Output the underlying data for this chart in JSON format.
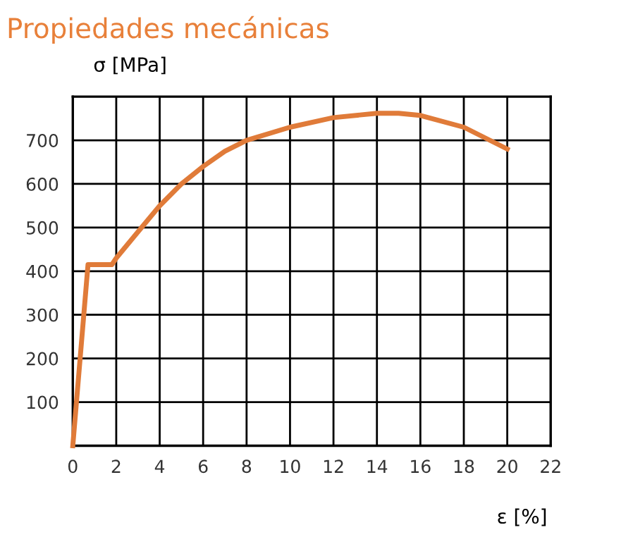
{
  "chart_data": {
    "type": "line",
    "title": "Propiedades mecánicas",
    "xlabel": "ε [%]",
    "ylabel": "σ [MPa]",
    "x": [
      0,
      0.7,
      1.8,
      2,
      3,
      4,
      5,
      6,
      7,
      8,
      10,
      12,
      14,
      15,
      16,
      18,
      20
    ],
    "series": [
      {
        "color": "#e07b39",
        "values": [
          0,
          415,
          415,
          430,
          490,
          550,
          600,
          640,
          675,
          700,
          730,
          752,
          762,
          762,
          757,
          730,
          680
        ]
      }
    ],
    "xlim": [
      0,
      22
    ],
    "xticks": [
      0,
      2,
      4,
      6,
      8,
      10,
      12,
      14,
      16,
      18,
      20,
      22
    ],
    "ylim": [
      0,
      800
    ],
    "yticks": [
      100,
      200,
      300,
      400,
      500,
      600,
      700
    ],
    "grid": true,
    "marker": "none",
    "line_style": "solid"
  }
}
